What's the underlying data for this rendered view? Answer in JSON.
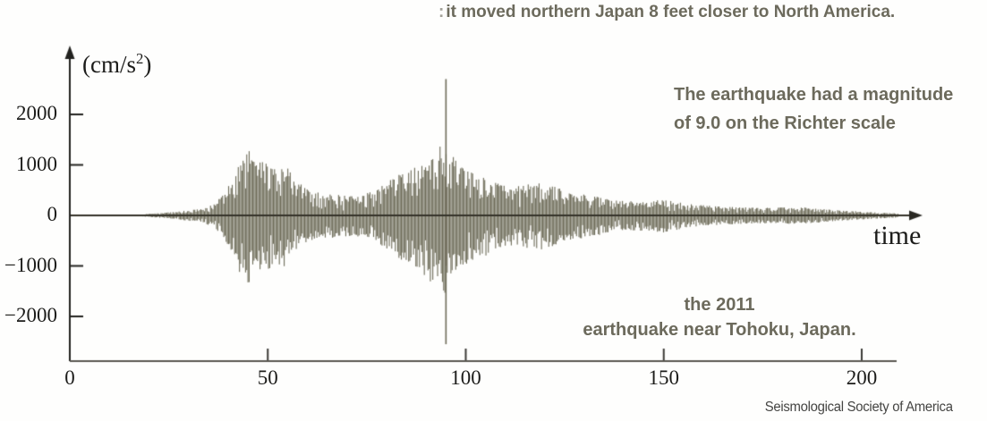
{
  "page": {
    "background": "#fefefd"
  },
  "annotations": {
    "top_fragment_mark": ":",
    "top": "it moved northern Japan 8 feet closer to North America.",
    "magnitude_line1": "The earthquake had a magnitude",
    "magnitude_line2": "of 9.0 on the Richter scale",
    "event_line1": "the 2011",
    "event_line2": "earthquake near Tohoku, Japan.",
    "attribution": "Seismological Society of America",
    "annotation_color": "#6c6a5c"
  },
  "chart_data": {
    "type": "line",
    "subtype": "seismogram",
    "title": "",
    "xlabel": "time",
    "ylabel": {
      "prefix": "(cm/s",
      "sup": "2",
      "suffix": ")"
    },
    "x_ticks": [
      0,
      50,
      100,
      150,
      200
    ],
    "y_ticks": [
      2000,
      1000,
      0,
      -1000,
      -2000
    ],
    "xlim": [
      0,
      209
    ],
    "ylim": [
      -2900,
      2900
    ],
    "grid": false,
    "legend": "none",
    "waveform_color": "#625f4b",
    "axis_color": "#22221f",
    "baseline_axis_color": "#595751",
    "negative_scale": 1.05,
    "main_spike": {
      "time": 95,
      "peak": 2700,
      "trough": -2550
    },
    "envelope": [
      [
        0,
        15
      ],
      [
        18,
        18
      ],
      [
        21,
        40
      ],
      [
        25,
        60
      ],
      [
        30,
        100
      ],
      [
        34,
        150
      ],
      [
        36,
        210
      ],
      [
        39,
        420
      ],
      [
        41,
        800
      ],
      [
        43,
        1100
      ],
      [
        45,
        1300
      ],
      [
        47,
        1150
      ],
      [
        49,
        1050
      ],
      [
        52,
        1000
      ],
      [
        55,
        950
      ],
      [
        57,
        700
      ],
      [
        60,
        520
      ],
      [
        64,
        430
      ],
      [
        67,
        420
      ],
      [
        72,
        380
      ],
      [
        75,
        450
      ],
      [
        78,
        540
      ],
      [
        81,
        700
      ],
      [
        84,
        850
      ],
      [
        88,
        1000
      ],
      [
        91,
        1250
      ],
      [
        93,
        1350
      ],
      [
        95,
        1500
      ],
      [
        97,
        1150
      ],
      [
        99,
        950
      ],
      [
        102,
        850
      ],
      [
        106,
        750
      ],
      [
        109,
        620
      ],
      [
        112,
        560
      ],
      [
        116,
        620
      ],
      [
        119,
        650
      ],
      [
        123,
        560
      ],
      [
        126,
        480
      ],
      [
        130,
        430
      ],
      [
        133,
        400
      ],
      [
        136,
        320
      ],
      [
        141,
        280
      ],
      [
        146,
        300
      ],
      [
        150,
        320
      ],
      [
        154,
        260
      ],
      [
        159,
        210
      ],
      [
        164,
        180
      ],
      [
        170,
        160
      ],
      [
        177,
        150
      ],
      [
        184,
        170
      ],
      [
        191,
        120
      ],
      [
        197,
        90
      ],
      [
        204,
        60
      ],
      [
        209,
        40
      ]
    ]
  }
}
